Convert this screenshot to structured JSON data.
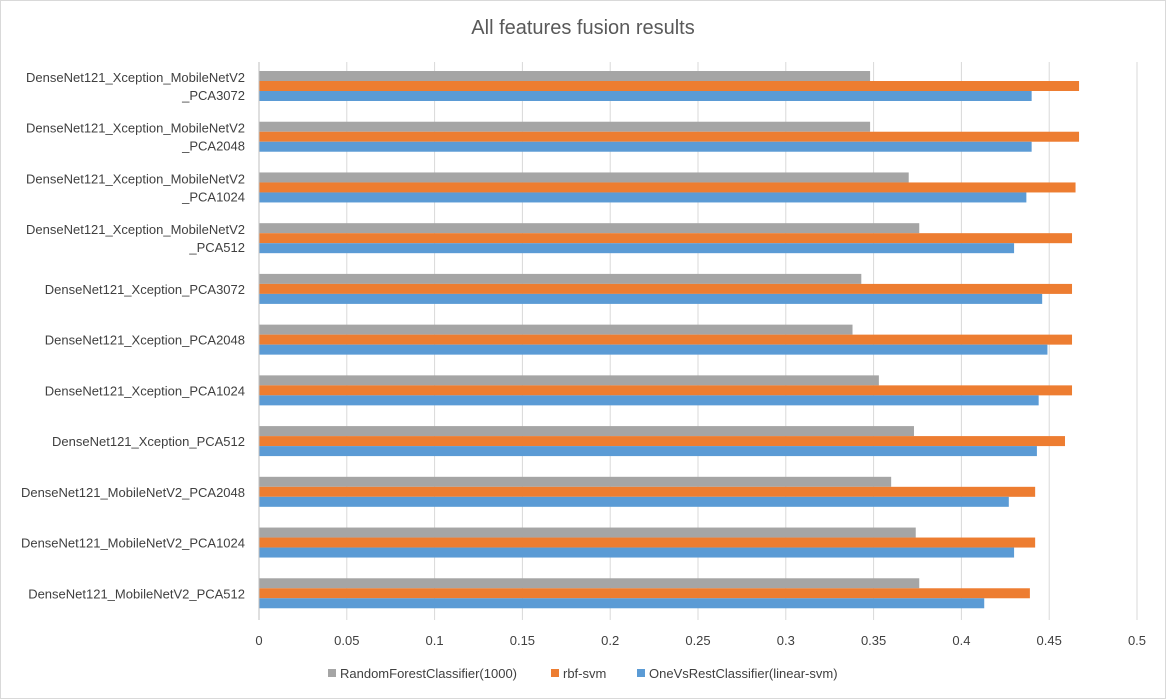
{
  "chart_data": {
    "type": "bar",
    "orientation": "horizontal",
    "title": "All features fusion results",
    "xlabel": "",
    "ylabel": "",
    "xlim": [
      0,
      0.5
    ],
    "x_ticks": [
      "0",
      "0.05",
      "0.1",
      "0.15",
      "0.2",
      "0.25",
      "0.3",
      "0.35",
      "0.4",
      "0.45",
      "0.5"
    ],
    "grid": "vertical",
    "legend_position": "bottom",
    "categories": [
      [
        "DenseNet121_Xception_MobileNetV2",
        "_PCA3072"
      ],
      [
        "DenseNet121_Xception_MobileNetV2",
        "_PCA2048"
      ],
      [
        "DenseNet121_Xception_MobileNetV2",
        "_PCA1024"
      ],
      [
        "DenseNet121_Xception_MobileNetV2",
        "_PCA512"
      ],
      [
        "DenseNet121_Xception_PCA3072"
      ],
      [
        "DenseNet121_Xception_PCA2048"
      ],
      [
        "DenseNet121_Xception_PCA1024"
      ],
      [
        "DenseNet121_Xception_PCA512"
      ],
      [
        "DenseNet121_MobileNetV2_PCA2048"
      ],
      [
        "DenseNet121_MobileNetV2_PCA1024"
      ],
      [
        "DenseNet121_MobileNetV2_PCA512"
      ]
    ],
    "series": [
      {
        "name": "RandomForestClassifier(1000)",
        "color": "#a5a5a5",
        "values": [
          0.348,
          0.348,
          0.37,
          0.376,
          0.343,
          0.338,
          0.353,
          0.373,
          0.36,
          0.374,
          0.376
        ]
      },
      {
        "name": "rbf-svm",
        "color": "#ed7d31",
        "values": [
          0.467,
          0.467,
          0.465,
          0.463,
          0.463,
          0.463,
          0.463,
          0.459,
          0.442,
          0.442,
          0.439
        ]
      },
      {
        "name": "OneVsRestClassifier(linear-svm)",
        "color": "#5b9bd5",
        "values": [
          0.44,
          0.44,
          0.437,
          0.43,
          0.446,
          0.449,
          0.444,
          0.443,
          0.427,
          0.43,
          0.413
        ]
      }
    ]
  },
  "colors": {
    "grid": "#d9d9d9",
    "axis": "#bfbfbf",
    "text": "#404040",
    "title": "#595959"
  }
}
